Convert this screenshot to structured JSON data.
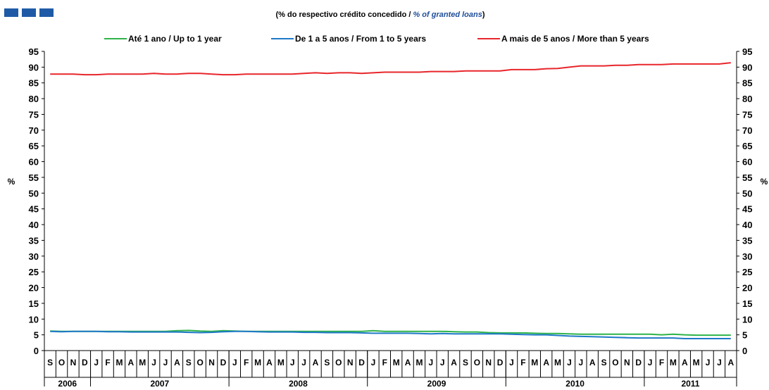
{
  "brand_color": "#1f5aa6",
  "chart_data": {
    "type": "line",
    "title": "",
    "subtitle_pt": "(% do respectivo crédito concedido / ",
    "subtitle_en": "% of granted loans",
    "subtitle_close": ")",
    "ylabel_left": "%",
    "ylabel_right": "%",
    "ylim": [
      0,
      95
    ],
    "yticks": [
      0,
      5,
      10,
      15,
      20,
      25,
      30,
      35,
      40,
      45,
      50,
      55,
      60,
      65,
      70,
      75,
      80,
      85,
      90,
      95
    ],
    "grid": false,
    "legend_position": "top",
    "x": [
      "2006-09",
      "2006-10",
      "2006-11",
      "2006-12",
      "2007-01",
      "2007-02",
      "2007-03",
      "2007-04",
      "2007-05",
      "2007-06",
      "2007-07",
      "2007-08",
      "2007-09",
      "2007-10",
      "2007-11",
      "2007-12",
      "2008-01",
      "2008-02",
      "2008-03",
      "2008-04",
      "2008-05",
      "2008-06",
      "2008-07",
      "2008-08",
      "2008-09",
      "2008-10",
      "2008-11",
      "2008-12",
      "2009-01",
      "2009-02",
      "2009-03",
      "2009-04",
      "2009-05",
      "2009-06",
      "2009-07",
      "2009-08",
      "2009-09",
      "2009-10",
      "2009-11",
      "2009-12",
      "2010-01",
      "2010-02",
      "2010-03",
      "2010-04",
      "2010-05",
      "2010-06",
      "2010-07",
      "2010-08",
      "2010-09",
      "2010-10",
      "2010-11",
      "2010-12",
      "2011-01",
      "2011-02",
      "2011-03",
      "2011-04",
      "2011-05",
      "2011-06",
      "2011-07",
      "2011-08"
    ],
    "month_labels": [
      "S",
      "O",
      "N",
      "D",
      "J",
      "F",
      "M",
      "A",
      "M",
      "J",
      "J",
      "A",
      "S",
      "O",
      "N",
      "D",
      "J",
      "F",
      "M",
      "A",
      "M",
      "J",
      "J",
      "A",
      "S",
      "O",
      "N",
      "D",
      "J",
      "F",
      "M",
      "A",
      "M",
      "J",
      "J",
      "A",
      "S",
      "O",
      "N",
      "D",
      "J",
      "F",
      "M",
      "A",
      "M",
      "J",
      "J",
      "A",
      "S",
      "O",
      "N",
      "D",
      "J",
      "F",
      "M",
      "A",
      "M",
      "J",
      "J",
      "A"
    ],
    "years": [
      {
        "label": "2006",
        "start": 0,
        "end": 3
      },
      {
        "label": "2007",
        "start": 4,
        "end": 15
      },
      {
        "label": "2008",
        "start": 16,
        "end": 27
      },
      {
        "label": "2009",
        "start": 28,
        "end": 39
      },
      {
        "label": "2010",
        "start": 40,
        "end": 51
      },
      {
        "label": "2011",
        "start": 52,
        "end": 59
      }
    ],
    "series": [
      {
        "name": "Até 1 ano / Up to 1 year",
        "color": "#2db34a",
        "values": [
          6.2,
          6.1,
          6.1,
          6.1,
          6.1,
          6.1,
          6.1,
          6.1,
          6.1,
          6.1,
          6.1,
          6.3,
          6.4,
          6.2,
          6.1,
          6.3,
          6.2,
          6.1,
          6.1,
          6.1,
          6.1,
          6.1,
          6.1,
          6.1,
          6.1,
          6.1,
          6.1,
          6.1,
          6.3,
          6.1,
          6.1,
          6.1,
          6.1,
          6.1,
          6.1,
          6.0,
          5.9,
          5.9,
          5.7,
          5.6,
          5.6,
          5.6,
          5.5,
          5.4,
          5.4,
          5.3,
          5.2,
          5.2,
          5.2,
          5.2,
          5.2,
          5.2,
          5.2,
          5.0,
          5.2,
          5.0,
          4.9,
          4.9,
          4.9,
          4.9
        ]
      },
      {
        "name": "De 1 a 5 anos / From 1 to 5 years",
        "color": "#1f78c8",
        "values": [
          6.1,
          6.0,
          6.1,
          6.1,
          6.1,
          6.0,
          6.0,
          5.9,
          5.9,
          5.9,
          5.9,
          5.9,
          5.8,
          5.7,
          5.8,
          6.0,
          6.1,
          6.1,
          6.0,
          5.9,
          5.9,
          5.9,
          5.8,
          5.8,
          5.7,
          5.7,
          5.7,
          5.6,
          5.5,
          5.5,
          5.5,
          5.5,
          5.4,
          5.3,
          5.4,
          5.3,
          5.3,
          5.3,
          5.3,
          5.3,
          5.2,
          5.1,
          5.0,
          5.0,
          4.8,
          4.6,
          4.5,
          4.4,
          4.3,
          4.2,
          4.1,
          4.0,
          4.0,
          4.0,
          4.0,
          3.8,
          3.8,
          3.8,
          3.8,
          3.8
        ]
      },
      {
        "name": "A mais de 5 anos / More than 5 years",
        "color": "#e8262b",
        "values": [
          87.8,
          87.8,
          87.8,
          87.6,
          87.6,
          87.8,
          87.8,
          87.8,
          87.8,
          88.0,
          87.8,
          87.8,
          88.0,
          88.0,
          87.8,
          87.6,
          87.6,
          87.8,
          87.8,
          87.8,
          87.8,
          87.8,
          88.0,
          88.2,
          88.0,
          88.2,
          88.2,
          88.0,
          88.2,
          88.4,
          88.4,
          88.4,
          88.4,
          88.6,
          88.6,
          88.6,
          88.8,
          88.8,
          88.8,
          88.8,
          89.2,
          89.2,
          89.2,
          89.5,
          89.6,
          90.0,
          90.4,
          90.4,
          90.4,
          90.6,
          90.6,
          90.8,
          90.8,
          90.8,
          91.0,
          91.0,
          91.0,
          91.0,
          91.0,
          91.4
        ]
      }
    ]
  }
}
